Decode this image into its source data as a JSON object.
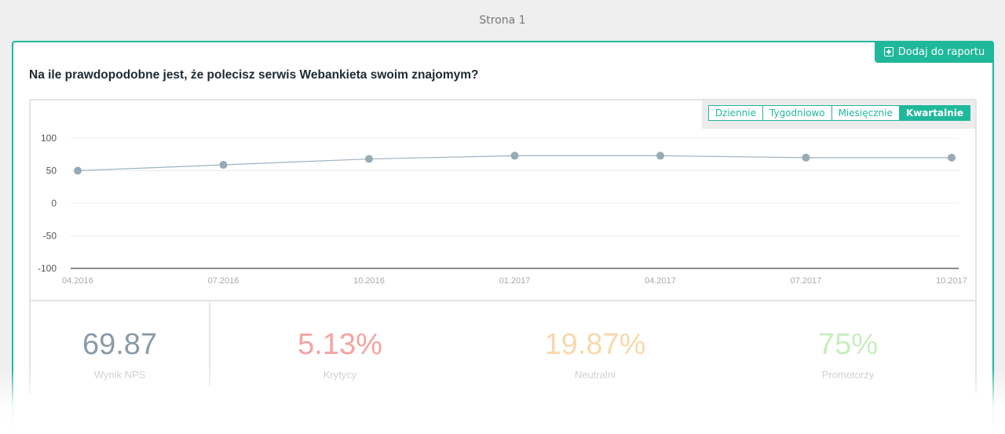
{
  "page": {
    "label": "Strona 1"
  },
  "card": {
    "add_button_label": "Dodaj do raportu",
    "question": "Na ile prawdopodobne jest, że polecisz serwis Webankieta swoim znajomym?"
  },
  "period_tabs": [
    {
      "label": "Dziennie",
      "active": false
    },
    {
      "label": "Tygodniowo",
      "active": false
    },
    {
      "label": "Miesięcznie",
      "active": false
    },
    {
      "label": "Kwartalnie",
      "active": true
    }
  ],
  "chart_data": {
    "type": "line",
    "categories": [
      "04.2016",
      "07.2016",
      "10.2016",
      "01.2017",
      "04.2017",
      "07.2017",
      "10.2017"
    ],
    "series": [
      {
        "values": [
          50,
          59,
          68,
          73,
          73,
          70,
          70
        ]
      }
    ],
    "yticks": [
      100,
      50,
      0,
      -50,
      -100
    ],
    "ylim": [
      -100,
      100
    ],
    "grid": true,
    "colors": {
      "line": "#9fb2bf",
      "point": "#97aab6",
      "grid": "#ececec",
      "axis": "#666666"
    }
  },
  "stats": {
    "nps": {
      "value": "69.87",
      "label": "Wynik NPS",
      "color": "#8a9aa6"
    },
    "critics": {
      "value": "5.13%",
      "label": "Krytycy",
      "color": "#f5a3a3"
    },
    "neutrals": {
      "value": "19.87%",
      "label": "Neutralni",
      "color": "#f8d9ab"
    },
    "promoters": {
      "value": "75%",
      "label": "Promotorzy",
      "color": "#c8edc0"
    }
  }
}
